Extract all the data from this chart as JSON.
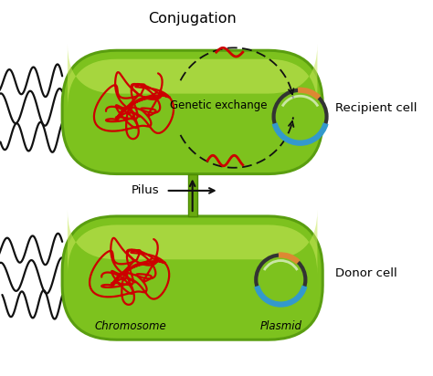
{
  "title": "Conjugation",
  "cell_fill": "#7dc21e",
  "cell_edge": "#5a9e10",
  "cell_highlight": "#c8e85a",
  "background": "#ffffff",
  "recipient_label": "Recipient cell",
  "donor_label": "Donor cell",
  "pilus_label": "Pilus",
  "genetic_exchange_label": "Genetic exchange",
  "chromosome_label": "Chromosome",
  "plasmid_label": "Plasmid",
  "chromosome_color": "#cc0000",
  "plasmid_dark": "#333333",
  "plasmid_blue": "#3399cc",
  "plasmid_orange": "#dd8833",
  "flagella_color": "#111111",
  "arrow_color": "#111111",
  "dna_fragment_color": "#cc0000",
  "pilus_color": "#6aaa10",
  "pilus_edge": "#4a8a00"
}
